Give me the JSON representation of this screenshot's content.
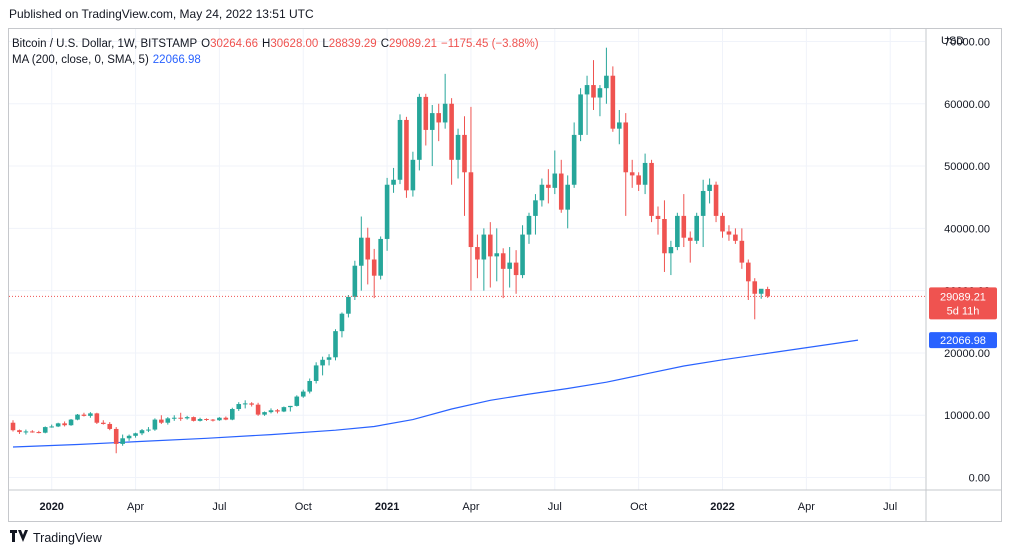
{
  "header": {
    "published": "Published on TradingView.com, May 24, 2022 13:51 UTC"
  },
  "legend": {
    "symbol": "Bitcoin / U.S. Dollar, 1W, BITSTAMP",
    "o_key": "O",
    "o_val": "30264.66",
    "h_key": "H",
    "h_val": "30628.00",
    "l_key": "L",
    "l_val": "28839.29",
    "c_key": "C",
    "c_val": "29089.21",
    "change": "−1175.45 (−3.88%)",
    "ma_label": "MA (200, close, 0, SMA, 5)",
    "ma_value": "22066.98"
  },
  "axis": {
    "currency": "USD"
  },
  "price_tag": {
    "price": "29089.21",
    "countdown": "5d 11h"
  },
  "ma_tag": {
    "value": "22066.98"
  },
  "footer": {
    "brand": "TradingView",
    "brand_icon": "tradingview-logo-icon"
  },
  "colors": {
    "up": "#26a69a",
    "down": "#ef5350",
    "ma": "#2962ff",
    "grid": "#f0f3fa"
  },
  "chart_data": {
    "type": "candlestick",
    "title": "Bitcoin / U.S. Dollar, 1W, BITSTAMP",
    "ylabel": "USD",
    "ylim": [
      -2000,
      72000
    ],
    "y_ticks": [
      "70000.00",
      "60000.00",
      "50000.00",
      "40000.00",
      "30000.00",
      "20000.00",
      "10000.00",
      "0.00"
    ],
    "y_tick_values": [
      70000,
      60000,
      50000,
      40000,
      30000,
      20000,
      10000,
      0
    ],
    "x_ticks": [
      "2020",
      "Apr",
      "Jul",
      "Oct",
      "2021",
      "Apr",
      "Jul",
      "Oct",
      "2022",
      "Apr",
      "Jul"
    ],
    "x_tick_weeks": [
      6,
      19,
      32,
      45,
      58,
      71,
      84,
      97,
      110,
      123,
      136
    ],
    "x_tick_bold": [
      true,
      false,
      false,
      false,
      true,
      false,
      false,
      false,
      true,
      false,
      false
    ],
    "last_price": 29089.21,
    "series": [
      {
        "name": "Bitcoin / U.S. Dollar",
        "type": "candlestick",
        "values": [
          [
            8800,
            9200,
            7400,
            7600
          ],
          [
            7600,
            7700,
            7000,
            7300
          ],
          [
            7300,
            7700,
            6900,
            7400
          ],
          [
            7400,
            7600,
            7200,
            7300
          ],
          [
            7300,
            7500,
            7100,
            7200
          ],
          [
            7200,
            8200,
            7100,
            8100
          ],
          [
            8100,
            8500,
            8000,
            8200
          ],
          [
            8200,
            8800,
            8100,
            8700
          ],
          [
            8700,
            9000,
            8200,
            8400
          ],
          [
            8400,
            9400,
            8300,
            9300
          ],
          [
            9300,
            10200,
            9200,
            10100
          ],
          [
            10100,
            10400,
            9800,
            9900
          ],
          [
            9900,
            10500,
            9600,
            10300
          ],
          [
            10300,
            10400,
            8600,
            8800
          ],
          [
            8800,
            9200,
            8500,
            8600
          ],
          [
            8600,
            8900,
            7600,
            7800
          ],
          [
            7800,
            8100,
            3900,
            5400
          ],
          [
            5400,
            6900,
            5100,
            6300
          ],
          [
            6300,
            6900,
            5900,
            6700
          ],
          [
            6700,
            7200,
            6400,
            7100
          ],
          [
            7100,
            7800,
            6800,
            7600
          ],
          [
            7600,
            8100,
            7300,
            7700
          ],
          [
            7700,
            9500,
            7500,
            9300
          ],
          [
            9300,
            10000,
            8600,
            8800
          ],
          [
            8800,
            9700,
            8500,
            9500
          ],
          [
            9500,
            10000,
            9100,
            9600
          ],
          [
            9600,
            10400,
            9100,
            9500
          ],
          [
            9500,
            9900,
            9300,
            9700
          ],
          [
            9700,
            9800,
            9000,
            9100
          ],
          [
            9100,
            9600,
            9000,
            9400
          ],
          [
            9400,
            9500,
            9100,
            9300
          ],
          [
            9300,
            9400,
            9000,
            9200
          ],
          [
            9200,
            9700,
            9100,
            9600
          ],
          [
            9600,
            9800,
            9200,
            9300
          ],
          [
            9300,
            11200,
            9200,
            11000
          ],
          [
            11000,
            12100,
            10700,
            11800
          ],
          [
            11800,
            12400,
            11100,
            11900
          ],
          [
            11900,
            12100,
            11400,
            11700
          ],
          [
            11700,
            12000,
            9900,
            10100
          ],
          [
            10100,
            10600,
            9900,
            10500
          ],
          [
            10500,
            11100,
            10300,
            10800
          ],
          [
            10800,
            11000,
            10300,
            10600
          ],
          [
            10600,
            11400,
            10500,
            11300
          ],
          [
            11300,
            11500,
            10600,
            11500
          ],
          [
            11500,
            13200,
            11400,
            13000
          ],
          [
            13000,
            14100,
            12800,
            13800
          ],
          [
            13800,
            15900,
            13500,
            15500
          ],
          [
            15500,
            18500,
            15100,
            18000
          ],
          [
            18000,
            19400,
            16400,
            18900
          ],
          [
            18900,
            19800,
            18000,
            19300
          ],
          [
            19300,
            23800,
            18800,
            23500
          ],
          [
            23500,
            26500,
            22500,
            26300
          ],
          [
            26300,
            29300,
            25700,
            29000
          ],
          [
            29000,
            34800,
            28500,
            34000
          ],
          [
            34000,
            41900,
            30000,
            38500
          ],
          [
            38500,
            40100,
            31000,
            35000
          ],
          [
            35000,
            36700,
            28800,
            32400
          ],
          [
            32400,
            38700,
            31800,
            38300
          ],
          [
            38300,
            48100,
            36400,
            47000
          ],
          [
            47000,
            49700,
            45700,
            47800
          ],
          [
            47800,
            58300,
            47100,
            57400
          ],
          [
            57400,
            57900,
            44900,
            46100
          ],
          [
            46100,
            52300,
            45100,
            51000
          ],
          [
            51000,
            61600,
            49300,
            61100
          ],
          [
            61100,
            61600,
            53300,
            55800
          ],
          [
            55800,
            59800,
            50000,
            58500
          ],
          [
            58500,
            60000,
            54000,
            57000
          ],
          [
            57000,
            64800,
            56000,
            60000
          ],
          [
            60000,
            60900,
            47000,
            51000
          ],
          [
            51000,
            56000,
            48000,
            55000
          ],
          [
            55000,
            58000,
            42000,
            49000
          ],
          [
            49000,
            59500,
            30000,
            37000
          ],
          [
            37000,
            39000,
            32000,
            35000
          ],
          [
            35000,
            40000,
            30000,
            39000
          ],
          [
            39000,
            41000,
            30500,
            35500
          ],
          [
            35500,
            40000,
            31500,
            36000
          ],
          [
            36000,
            36800,
            28800,
            33500
          ],
          [
            33500,
            37000,
            30500,
            34500
          ],
          [
            34500,
            36500,
            29500,
            32500
          ],
          [
            32500,
            40500,
            32000,
            39000
          ],
          [
            39000,
            42500,
            37500,
            42000
          ],
          [
            42000,
            45500,
            39000,
            44500
          ],
          [
            44500,
            48000,
            43500,
            47000
          ],
          [
            47000,
            49500,
            44000,
            46500
          ],
          [
            46500,
            52500,
            45500,
            48800
          ],
          [
            48800,
            51000,
            42500,
            43000
          ],
          [
            43000,
            48500,
            40000,
            47000
          ],
          [
            47000,
            57000,
            46500,
            55000
          ],
          [
            55000,
            62500,
            54000,
            61500
          ],
          [
            61500,
            64500,
            55000,
            63000
          ],
          [
            63000,
            67000,
            59000,
            61000
          ],
          [
            61000,
            63000,
            58000,
            62500
          ],
          [
            62500,
            69000,
            60000,
            64500
          ],
          [
            64500,
            66000,
            55500,
            56000
          ],
          [
            56000,
            59000,
            53500,
            57000
          ],
          [
            57000,
            58500,
            42000,
            49000
          ],
          [
            49000,
            51000,
            46500,
            48500
          ],
          [
            48500,
            49000,
            46000,
            47000
          ],
          [
            47000,
            52000,
            45500,
            50500
          ],
          [
            50500,
            51000,
            41000,
            42000
          ],
          [
            42000,
            43500,
            39000,
            41500
          ],
          [
            41500,
            44500,
            33000,
            36000
          ],
          [
            36000,
            38000,
            32500,
            37000
          ],
          [
            37000,
            42500,
            36500,
            42000
          ],
          [
            42000,
            45500,
            37000,
            38500
          ],
          [
            38500,
            39500,
            34500,
            38000
          ],
          [
            38000,
            42500,
            37500,
            42000
          ],
          [
            42000,
            47800,
            37000,
            46000
          ],
          [
            46000,
            48000,
            44000,
            47000
          ],
          [
            47000,
            47500,
            41000,
            42000
          ],
          [
            42000,
            42500,
            38500,
            39500
          ],
          [
            39500,
            40500,
            38000,
            39000
          ],
          [
            39000,
            40000,
            37500,
            38000
          ],
          [
            38000,
            40000,
            33500,
            34500
          ],
          [
            34500,
            35000,
            28500,
            31500
          ],
          [
            31500,
            32000,
            25400,
            29500
          ],
          [
            29500,
            30000,
            28700,
            30300
          ],
          [
            30264.66,
            30628,
            28839.29,
            29089.21
          ]
        ]
      },
      {
        "name": "MA (200, close, 0, SMA, 5)",
        "type": "line",
        "x": [
          0,
          10,
          20,
          30,
          40,
          50,
          56,
          62,
          68,
          74,
          80,
          86,
          92,
          98,
          104,
          110,
          116,
          122,
          128,
          131
        ],
        "values": [
          4900,
          5300,
          5800,
          6300,
          6900,
          7600,
          8200,
          9300,
          11000,
          12400,
          13400,
          14300,
          15300,
          16600,
          17900,
          18900,
          19800,
          20700,
          21600,
          22066.98
        ]
      }
    ]
  }
}
